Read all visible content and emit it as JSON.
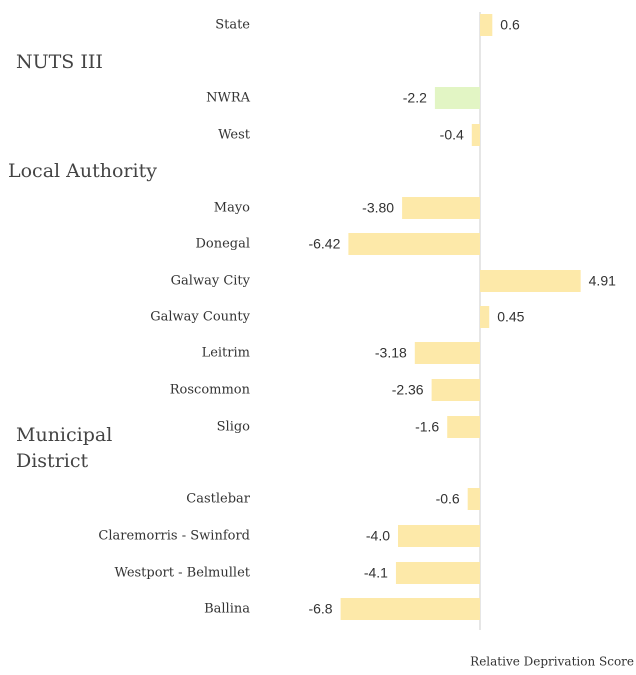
{
  "chart_data": {
    "type": "bar",
    "orientation": "horizontal",
    "categories": [
      "State",
      "NWRA",
      "West",
      "Mayo",
      "Donegal",
      "Galway City",
      "Galway County",
      "Leitrim",
      "Roscommon",
      "Sligo",
      "Castlebar",
      "Claremorris - Swinford",
      "Westport - Belmullet",
      "Ballina"
    ],
    "values": [
      0.6,
      -2.2,
      -0.4,
      -3.8,
      -6.42,
      4.91,
      0.45,
      -3.18,
      -2.36,
      -1.6,
      -0.6,
      -4.0,
      -4.1,
      -6.8
    ],
    "value_labels": [
      "0.6",
      "-2.2",
      "-0.4",
      "-3.80",
      "-6.42",
      "4.91",
      "0.45",
      "-3.18",
      "-2.36",
      "-1.6",
      "-0.6",
      "-4.0",
      "-4.1",
      "-6.8"
    ],
    "colors": [
      "#fde9a9",
      "#e2f5c4",
      "#fde9a9",
      "#fde9a9",
      "#fde9a9",
      "#fde9a9",
      "#fde9a9",
      "#fde9a9",
      "#fde9a9",
      "#fde9a9",
      "#fde9a9",
      "#fde9a9",
      "#fde9a9",
      "#fde9a9"
    ],
    "groups": [
      "NUTS III",
      "Local Authority",
      "Municipal District"
    ],
    "xlabel": "Relative Deprivation Score",
    "xlim": [
      -7,
      7
    ]
  }
}
